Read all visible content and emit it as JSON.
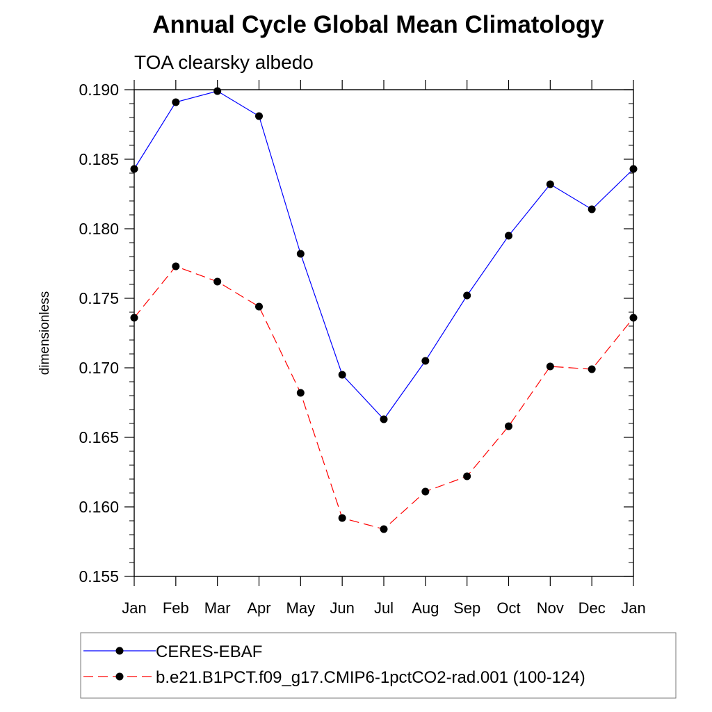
{
  "chart_data": {
    "type": "line",
    "title": "Annual Cycle Global Mean Climatology",
    "subtitle": "TOA clearsky albedo",
    "xlabel": "",
    "ylabel": "dimensionless",
    "categories": [
      "Jan",
      "Feb",
      "Mar",
      "Apr",
      "May",
      "Jun",
      "Jul",
      "Aug",
      "Sep",
      "Oct",
      "Nov",
      "Dec",
      "Jan"
    ],
    "ylim": [
      0.155,
      0.19
    ],
    "yticks": [
      "0.155",
      "0.160",
      "0.165",
      "0.170",
      "0.175",
      "0.180",
      "0.185",
      "0.190"
    ],
    "grid": false,
    "legend_position": "bottom",
    "series": [
      {
        "name": "CERES-EBAF",
        "color": "#0000ff",
        "line_style": "solid",
        "values": [
          0.1843,
          0.1891,
          0.1899,
          0.1881,
          0.1782,
          0.1695,
          0.1663,
          0.1705,
          0.1752,
          0.1795,
          0.1832,
          0.1814,
          0.1843
        ]
      },
      {
        "name": "b.e21.B1PCT.f09_g17.CMIP6-1pctCO2-rad.001 (100-124)",
        "color": "#ff0000",
        "line_style": "dashed",
        "values": [
          0.1736,
          0.1773,
          0.1762,
          0.1744,
          0.1682,
          0.1592,
          0.1584,
          0.1611,
          0.1622,
          0.1658,
          0.1701,
          0.1699,
          0.1736
        ]
      }
    ]
  }
}
